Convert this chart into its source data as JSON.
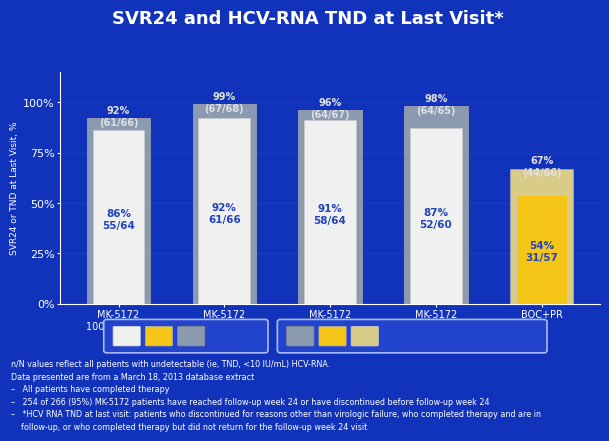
{
  "title": "SVR24 and HCV-RNA TND at Last Visit*",
  "background_color": "#1133bb",
  "title_color": "#ffffff",
  "ylabel": "SVR24 or TND at Last Visit, %",
  "categories": [
    "MK-5172\n100 mg + PR",
    "MK-5172\n200 mg + PR",
    "MK-5172\n400 mg + PR",
    "MK-5172\n800 mg + PR",
    "BOC+PR"
  ],
  "svr24_values": [
    86,
    92,
    91,
    87,
    54
  ],
  "svr24_labels_line1": [
    "86%",
    "92%",
    "91%",
    "87%",
    "54%"
  ],
  "svr24_labels_line2": [
    "55/64",
    "61/66",
    "58/64",
    "52/60",
    "31/57"
  ],
  "hcv_values": [
    92,
    99,
    96,
    98,
    67
  ],
  "hcv_labels_line1": [
    "92%",
    "99%",
    "96%",
    "98%",
    "67%"
  ],
  "hcv_labels_line2": [
    "(61/66)",
    "(67/68)",
    "(64/67)",
    "(64/65)",
    "(44/66)"
  ],
  "svr24_bar_color_mk": "#f0f0f0",
  "svr24_bar_color_boc": "#f5c518",
  "hcv_bar_color_mk": "#8a9ab0",
  "hcv_bar_color_boc": "#d8cc88",
  "label_color_inside": "#2233cc",
  "label_color_above": "#e0e0e0",
  "yticks": [
    0,
    25,
    50,
    75,
    100
  ],
  "ylim_max": 115,
  "footnote_lines": [
    "n/N values reflect all patients with undetectable (ie, TND, <10 IU/mL) HCV-RNA.",
    "Data presented are from a March 18, 2013 database extract",
    "–   All patients have completed therapy",
    "–   254 of 266 (95%) MK-5172 patients have reached follow-up week 24 or have discontinued before follow-up week 24",
    "–   *HCV RNA TND at last visit: patients who discontinued for reasons other than virologic failure, who completed therapy and are in",
    "    follow-up, or who completed therapy but did not return for the follow-up week 24 visit"
  ]
}
